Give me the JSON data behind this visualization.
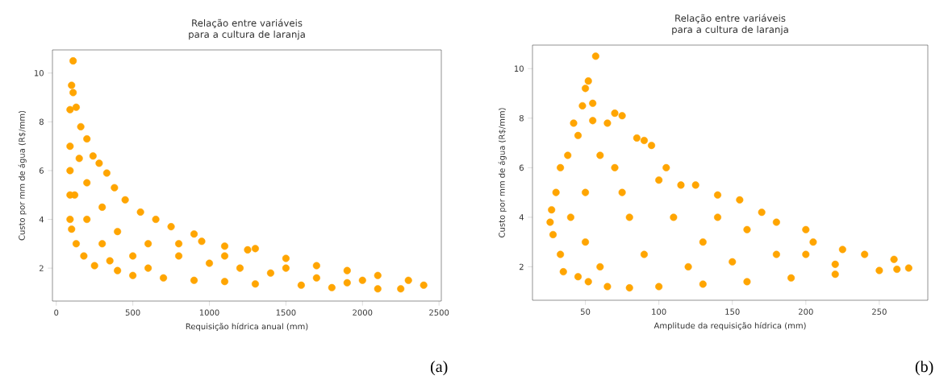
{
  "chart_data": [
    {
      "type": "scatter",
      "title": "Relação entre variáveis para a cultura de laranja",
      "xlabel": "Requisição hídrica anual (mm)",
      "ylabel": "Custo por mm de água (R$/mm)",
      "xlim": [
        -25,
        2515
      ],
      "ylim": [
        0.65,
        10.95
      ],
      "xticks": [
        0,
        500,
        1000,
        1500,
        2000,
        2500
      ],
      "yticks": [
        2,
        4,
        6,
        8,
        10
      ],
      "annotations": [
        "(a)"
      ],
      "series": [
        {
          "color": "#ffa500",
          "x": [
            110,
            100,
            110,
            130,
            160,
            200,
            240,
            280,
            330,
            380,
            450,
            550,
            650,
            750,
            900,
            950,
            1100,
            1250,
            1300,
            1500,
            1700,
            1900,
            2100,
            2300,
            2400,
            90,
            100,
            130,
            180,
            250,
            400,
            500,
            700,
            900,
            1100,
            1300,
            1600,
            1800,
            2100,
            2250,
            90,
            90,
            90,
            90,
            200,
            200,
            300,
            300,
            400,
            500,
            600,
            800,
            1000,
            1200,
            1400,
            1700,
            2000,
            150,
            120,
            350,
            600,
            800,
            1100,
            1500,
            1900
          ],
          "values": [
            10.5,
            9.5,
            9.2,
            8.6,
            7.8,
            7.3,
            6.6,
            6.3,
            5.9,
            5.3,
            4.8,
            4.3,
            4.0,
            3.7,
            3.4,
            3.1,
            2.9,
            2.75,
            2.8,
            2.4,
            2.1,
            1.9,
            1.7,
            1.5,
            1.3,
            4.0,
            3.6,
            3.0,
            2.5,
            2.1,
            1.9,
            1.7,
            1.6,
            1.5,
            1.45,
            1.35,
            1.3,
            1.2,
            1.15,
            1.15,
            5.0,
            6.0,
            7.0,
            8.5,
            4.0,
            5.5,
            3.0,
            4.5,
            3.5,
            2.5,
            3.0,
            2.5,
            2.2,
            2.0,
            1.8,
            1.6,
            1.5,
            6.5,
            5.0,
            2.3,
            2.0,
            3.0,
            2.5,
            2.0,
            1.4
          ]
        }
      ]
    },
    {
      "type": "scatter",
      "title": "Relação entre variáveis para a cultura de laranja",
      "xlabel": "Amplitude da requisição hídrica (mm)",
      "ylabel": "Custo por mm de água (R$/mm)",
      "xlim": [
        14,
        283
      ],
      "ylim": [
        0.65,
        10.95
      ],
      "xticks": [
        50,
        100,
        150,
        200,
        250
      ],
      "yticks": [
        2,
        4,
        6,
        8,
        10
      ],
      "annotations": [
        "(b)"
      ],
      "series": [
        {
          "color": "#ffa500",
          "x": [
            57,
            52,
            50,
            48,
            55,
            42,
            45,
            38,
            33,
            30,
            27,
            26,
            55,
            60,
            65,
            70,
            75,
            85,
            90,
            95,
            105,
            115,
            125,
            140,
            155,
            170,
            180,
            200,
            205,
            225,
            240,
            260,
            270,
            28,
            33,
            35,
            45,
            52,
            65,
            80,
            100,
            130,
            160,
            190,
            220,
            250,
            262,
            50,
            50,
            70,
            80,
            90,
            110,
            130,
            150,
            180,
            220,
            60,
            120,
            100,
            160,
            40,
            75,
            140,
            200
          ],
          "values": [
            10.5,
            9.5,
            9.2,
            8.5,
            8.6,
            7.8,
            7.3,
            6.5,
            6.0,
            5.0,
            4.3,
            3.8,
            7.9,
            6.5,
            7.8,
            8.2,
            8.1,
            7.2,
            7.1,
            6.9,
            6.0,
            5.3,
            5.3,
            4.9,
            4.7,
            4.2,
            3.8,
            3.5,
            3.0,
            2.7,
            2.5,
            2.3,
            1.95,
            3.3,
            2.5,
            1.8,
            1.6,
            1.4,
            1.2,
            1.15,
            1.2,
            1.3,
            1.4,
            1.55,
            1.7,
            1.85,
            1.9,
            5.0,
            3.0,
            6.0,
            4.0,
            2.5,
            4.0,
            3.0,
            2.2,
            2.5,
            2.1,
            2.0,
            2.0,
            5.5,
            3.5,
            4.0,
            5.0,
            4.0,
            2.5
          ]
        }
      ]
    }
  ]
}
